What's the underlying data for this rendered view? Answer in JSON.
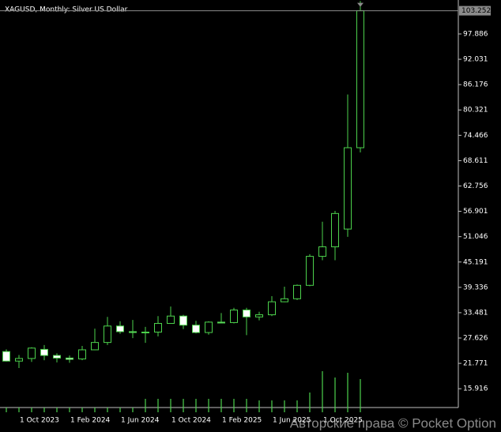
{
  "chart_data": {
    "type": "candlestick",
    "title": "XAGUSD, Monthly:  Silver US Dollar",
    "annotation": "Авторские права © Pocket Option",
    "categories": [
      null,
      "1 Oct 2023",
      null,
      null,
      null,
      "1 Feb 2024",
      null,
      null,
      null,
      "1 Jun 2024",
      null,
      null,
      null,
      "1 Oct 2024",
      null,
      null,
      null,
      "1 Feb 2025",
      null,
      null,
      null,
      "1 Jun 2025",
      null,
      null,
      null,
      "1 Oct 2025",
      null,
      null,
      null
    ],
    "open": [
      24.5,
      22.3,
      22.9,
      25.0,
      23.6,
      23.0,
      22.8,
      24.9,
      26.6,
      30.4,
      29.1,
      28.9,
      29.0,
      31.0,
      32.7,
      30.6,
      28.9,
      31.3,
      31.2,
      34.1,
      32.5,
      33.0,
      36.0,
      36.7,
      39.8,
      46.5,
      48.7,
      52.8,
      71.6
    ],
    "high": [
      25.0,
      23.7,
      25.5,
      26.0,
      24.1,
      23.6,
      25.8,
      29.8,
      32.5,
      31.5,
      31.8,
      30.2,
      32.7,
      34.9,
      33.0,
      31.6,
      31.5,
      33.4,
      34.6,
      34.6,
      33.7,
      37.3,
      39.5,
      40.0,
      47.0,
      54.5,
      57.0,
      83.9,
      105.5
    ],
    "low": [
      22.2,
      20.7,
      22.1,
      22.5,
      22.0,
      21.9,
      22.5,
      24.8,
      26.0,
      28.6,
      27.6,
      26.5,
      28.0,
      31.0,
      29.7,
      28.7,
      28.4,
      31.0,
      31.0,
      28.3,
      31.7,
      32.7,
      35.9,
      36.4,
      39.6,
      45.6,
      45.6,
      51.0,
      70.5
    ],
    "close": [
      22.3,
      22.9,
      25.3,
      23.6,
      23.0,
      22.7,
      24.9,
      26.6,
      30.4,
      29.1,
      28.9,
      29.0,
      31.0,
      32.7,
      30.6,
      28.9,
      31.3,
      31.1,
      34.1,
      32.5,
      33.0,
      36.0,
      36.7,
      39.8,
      46.5,
      48.7,
      56.4,
      71.6,
      103.252
    ],
    "volume": [
      6,
      6,
      6,
      6,
      6,
      6,
      6,
      6,
      6,
      6,
      6,
      17,
      17,
      17,
      17,
      17,
      17,
      17,
      17,
      17,
      15,
      15,
      15,
      15,
      25,
      52,
      44,
      50,
      42
    ],
    "ylim": [
      11.57,
      105.73
    ],
    "yticks": [
      15.916,
      21.771,
      27.626,
      33.481,
      39.336,
      45.191,
      51.046,
      56.901,
      62.756,
      68.611,
      74.466,
      80.321,
      86.176,
      92.031,
      97.886
    ],
    "bull_color": "#4cd24c",
    "bear_fill": "#ffffff",
    "volume_color": "#4cd24c"
  }
}
